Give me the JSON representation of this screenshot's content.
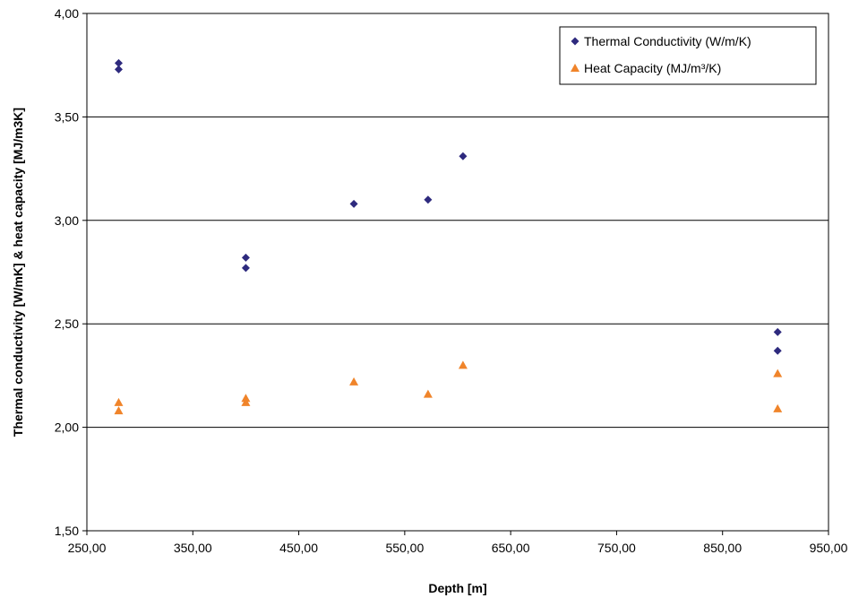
{
  "chart_data": {
    "type": "scatter",
    "xlabel": "Depth [m]",
    "ylabel": "Thermal conductivity [W/mK] & heat capacity [MJ/m3K]",
    "xlim": [
      250,
      950
    ],
    "ylim": [
      1.5,
      4.0
    ],
    "x_ticks": [
      250,
      350,
      450,
      550,
      650,
      750,
      850,
      950
    ],
    "x_tick_labels": [
      "250,00",
      "350,00",
      "450,00",
      "550,00",
      "650,00",
      "750,00",
      "850,00",
      "950,00"
    ],
    "y_ticks": [
      1.5,
      2.0,
      2.5,
      3.0,
      3.5,
      4.0
    ],
    "y_tick_labels": [
      "1,50",
      "2,00",
      "2,50",
      "3,00",
      "3,50",
      "4,00"
    ],
    "grid": "horizontal",
    "legend_position": "top-right",
    "series": [
      {
        "name": "Thermal Conductivity (W/m/K)",
        "legend_label": "Thermal Conductivity (W/m/K)",
        "marker": "diamond",
        "color": "#2E2A7E",
        "points": [
          {
            "x": 280,
            "y": 3.76
          },
          {
            "x": 280,
            "y": 3.73
          },
          {
            "x": 400,
            "y": 2.82
          },
          {
            "x": 400,
            "y": 2.77
          },
          {
            "x": 502,
            "y": 3.08
          },
          {
            "x": 572,
            "y": 3.1
          },
          {
            "x": 605,
            "y": 3.31
          },
          {
            "x": 902,
            "y": 2.46
          },
          {
            "x": 902,
            "y": 2.37
          }
        ]
      },
      {
        "name": "Heat Capacity (MJ/m³/K)",
        "legend_label": "Heat Capacity (MJ/m³/K)",
        "marker": "triangle",
        "color": "#F0842A",
        "points": [
          {
            "x": 280,
            "y": 2.12
          },
          {
            "x": 280,
            "y": 2.08
          },
          {
            "x": 400,
            "y": 2.14
          },
          {
            "x": 400,
            "y": 2.12
          },
          {
            "x": 502,
            "y": 2.22
          },
          {
            "x": 572,
            "y": 2.16
          },
          {
            "x": 605,
            "y": 2.3
          },
          {
            "x": 902,
            "y": 2.26
          },
          {
            "x": 902,
            "y": 2.09
          }
        ]
      }
    ]
  }
}
